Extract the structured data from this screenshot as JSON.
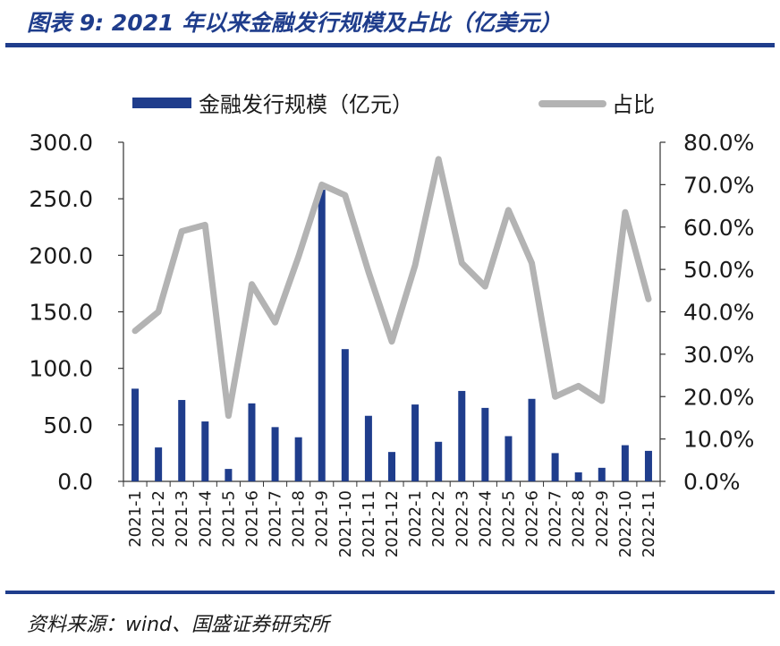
{
  "header": {
    "title": "图表 9:  2021 年以来金融发行规模及占比（亿美元）"
  },
  "footer": {
    "source": "资料来源：wind、国盛证券研究所"
  },
  "colors": {
    "bar": "#1f3d8c",
    "line": "#b3b3b3",
    "accent": "#1f3d8c"
  },
  "chart_data": {
    "type": "bar",
    "title": "",
    "categories": [
      "2021-1",
      "2021-2",
      "2021-3",
      "2021-4",
      "2021-5",
      "2021-6",
      "2021-7",
      "2021-8",
      "2021-9",
      "2021-10",
      "2021-11",
      "2021-12",
      "2022-1",
      "2022-2",
      "2022-3",
      "2022-4",
      "2022-5",
      "2022-6",
      "2022-7",
      "2022-8",
      "2022-9",
      "2022-10",
      "2022-11"
    ],
    "series": [
      {
        "name": "金融发行规模（亿元）",
        "type": "bar",
        "axis": "left",
        "values": [
          82,
          30,
          72,
          53,
          11,
          69,
          48,
          39,
          258,
          117,
          58,
          26,
          68,
          35,
          80,
          65,
          40,
          73,
          25,
          8,
          12,
          32,
          27
        ]
      },
      {
        "name": "占比",
        "type": "line",
        "axis": "right",
        "values": [
          35.5,
          40.0,
          59.0,
          60.5,
          15.5,
          46.5,
          37.5,
          53.0,
          70.0,
          67.5,
          49.5,
          33.0,
          51.0,
          76.0,
          51.5,
          46.0,
          64.0,
          51.5,
          20.0,
          22.5,
          19.0,
          63.5,
          43.0
        ]
      }
    ],
    "y_left": {
      "ylim": [
        0,
        300
      ],
      "ticks": [
        "0.0",
        "50.0",
        "100.0",
        "150.0",
        "200.0",
        "250.0",
        "300.0"
      ]
    },
    "y_right": {
      "ylim": [
        0,
        80
      ],
      "ticks": [
        "0.0%",
        "10.0%",
        "20.0%",
        "30.0%",
        "40.0%",
        "50.0%",
        "60.0%",
        "70.0%",
        "80.0%"
      ]
    },
    "xlabel": "",
    "ylabel": "",
    "legend": {
      "position": "top",
      "items": [
        "金融发行规模（亿元）",
        "占比"
      ]
    }
  }
}
